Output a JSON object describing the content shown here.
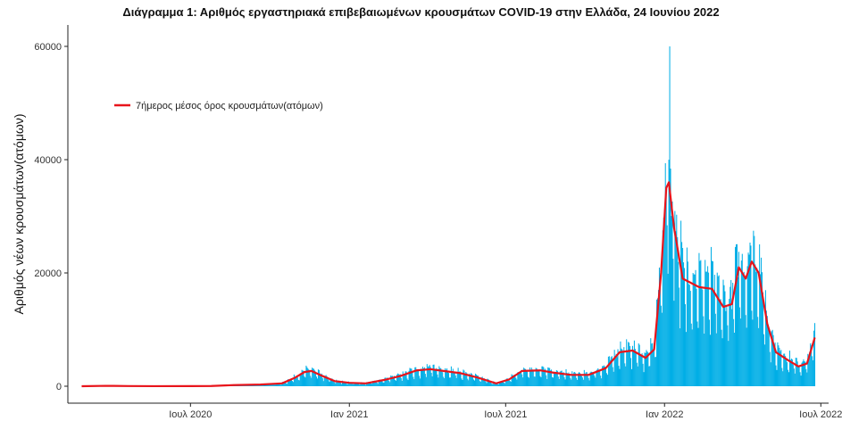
{
  "chart_data": {
    "type": "bar+line",
    "title": "Διάγραμμα 1: Αριθμός εργαστηριακά επιβεβαιωμένων κρουσμάτων COVID-19 στην Ελλάδα, 24 Ιουνίου 2022",
    "ylabel": "Αριθμός νέων κρουσμάτων(ατόμων)",
    "xlabel": "",
    "ylim": [
      0,
      63000
    ],
    "xlim": [
      "2020-02-10",
      "2022-07-10"
    ],
    "grid": false,
    "legend_position": "top-left",
    "y_ticks": [
      {
        "value": 0,
        "label": "0"
      },
      {
        "value": 20000,
        "label": "20000"
      },
      {
        "value": 40000,
        "label": "40000"
      },
      {
        "value": 60000,
        "label": "60000"
      }
    ],
    "x_ticks": [
      {
        "date": "2020-07-01",
        "label": "Ιουλ 2020"
      },
      {
        "date": "2021-01-01",
        "label": "Ιαν 2021"
      },
      {
        "date": "2021-07-01",
        "label": "Ιουλ 2021"
      },
      {
        "date": "2022-01-01",
        "label": "Ιαν 2022"
      },
      {
        "date": "2022-07-01",
        "label": "Ιουλ 2022"
      }
    ],
    "colors": {
      "bars": "#00aee6",
      "line": "#e8141b",
      "axis": "#222222"
    },
    "series": [
      {
        "name": "7ήμερος μέσος όρος κρουσμάτων(ατόμων)",
        "kind": "line",
        "points": [
          [
            "2020-02-26",
            0
          ],
          [
            "2020-03-25",
            70
          ],
          [
            "2020-04-20",
            30
          ],
          [
            "2020-05-20",
            10
          ],
          [
            "2020-07-01",
            20
          ],
          [
            "2020-07-25",
            40
          ],
          [
            "2020-08-20",
            200
          ],
          [
            "2020-09-20",
            300
          ],
          [
            "2020-10-15",
            500
          ],
          [
            "2020-10-30",
            1500
          ],
          [
            "2020-11-10",
            2500
          ],
          [
            "2020-11-18",
            2700
          ],
          [
            "2020-12-01",
            1800
          ],
          [
            "2020-12-15",
            900
          ],
          [
            "2021-01-01",
            600
          ],
          [
            "2021-01-20",
            500
          ],
          [
            "2021-02-10",
            1100
          ],
          [
            "2021-03-01",
            1800
          ],
          [
            "2021-03-20",
            2800
          ],
          [
            "2021-04-05",
            3000
          ],
          [
            "2021-04-20",
            2700
          ],
          [
            "2021-05-10",
            2300
          ],
          [
            "2021-05-30",
            1500
          ],
          [
            "2021-06-20",
            500
          ],
          [
            "2021-07-05",
            1200
          ],
          [
            "2021-07-20",
            2700
          ],
          [
            "2021-08-10",
            2800
          ],
          [
            "2021-08-25",
            2400
          ],
          [
            "2021-09-15",
            2000
          ],
          [
            "2021-10-05",
            2000
          ],
          [
            "2021-10-25",
            3200
          ],
          [
            "2021-11-10",
            6000
          ],
          [
            "2021-11-25",
            6300
          ],
          [
            "2021-12-10",
            5000
          ],
          [
            "2021-12-20",
            6500
          ],
          [
            "2021-12-28",
            20000
          ],
          [
            "2022-01-03",
            35000
          ],
          [
            "2022-01-06",
            36000
          ],
          [
            "2022-01-12",
            28000
          ],
          [
            "2022-01-22",
            19000
          ],
          [
            "2022-02-10",
            17500
          ],
          [
            "2022-02-25",
            17200
          ],
          [
            "2022-03-10",
            14000
          ],
          [
            "2022-03-20",
            14500
          ],
          [
            "2022-03-28",
            21000
          ],
          [
            "2022-04-05",
            19000
          ],
          [
            "2022-04-12",
            22000
          ],
          [
            "2022-04-20",
            20000
          ],
          [
            "2022-04-30",
            11000
          ],
          [
            "2022-05-10",
            6000
          ],
          [
            "2022-05-25",
            4500
          ],
          [
            "2022-06-05",
            3500
          ],
          [
            "2022-06-15",
            4000
          ],
          [
            "2022-06-24",
            8600
          ]
        ]
      }
    ],
    "bars": {
      "description_free": true,
      "start": "2020-02-26",
      "end": "2022-06-24",
      "peak_date": "2022-01-07",
      "peak_value": 60000
    }
  }
}
